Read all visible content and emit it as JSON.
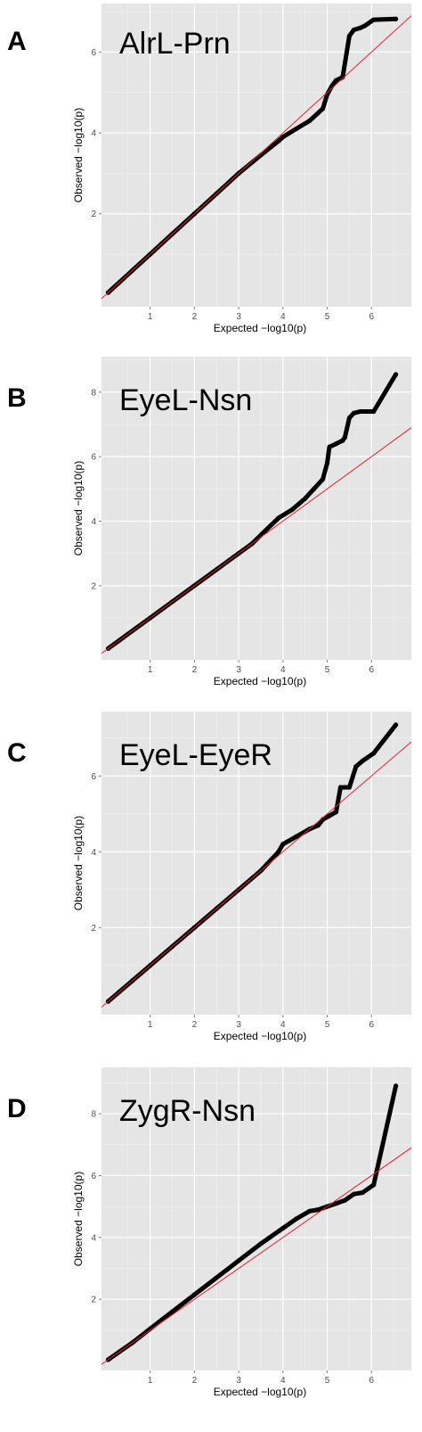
{
  "chart_data": [
    {
      "type": "scatter",
      "panel_label": "A",
      "title": "AlrL-Prn",
      "xlabel": "Expected  −log10(p)",
      "ylabel": "Observed  −log10(p)",
      "xlim": [
        -0.1,
        6.9
      ],
      "ylim": [
        -0.3,
        7.2
      ],
      "x_ticks": [
        1,
        2,
        3,
        4,
        5,
        6
      ],
      "y_ticks": [
        2,
        4,
        6
      ],
      "grid": true,
      "background": "#e5e5e5",
      "point_color": "#000000",
      "reference_line_color": "#e8202a",
      "reference_line": {
        "x": [
          -0.1,
          6.9
        ],
        "y": [
          -0.1,
          6.9
        ]
      },
      "points": {
        "x": [
          0.05,
          0.3,
          0.6,
          1.0,
          1.5,
          2.0,
          2.5,
          3.0,
          3.5,
          3.9,
          4.0,
          4.3,
          4.6,
          4.9,
          5.0,
          5.1,
          5.2,
          5.3,
          5.35,
          5.5,
          5.6,
          5.75,
          5.85,
          6.05,
          6.55
        ],
        "y": [
          0.05,
          0.3,
          0.6,
          1.0,
          1.5,
          2.0,
          2.5,
          3.0,
          3.45,
          3.8,
          3.9,
          4.1,
          4.3,
          4.6,
          4.95,
          5.15,
          5.3,
          5.35,
          5.38,
          6.4,
          6.55,
          6.6,
          6.65,
          6.8,
          6.82
        ]
      }
    },
    {
      "type": "scatter",
      "panel_label": "B",
      "title": "EyeL-Nsn",
      "xlabel": "Expected  −log10(p)",
      "ylabel": "Observed  −log10(p)",
      "xlim": [
        -0.1,
        6.9
      ],
      "ylim": [
        -0.3,
        9.1
      ],
      "x_ticks": [
        1,
        2,
        3,
        4,
        5,
        6
      ],
      "y_ticks": [
        2,
        4,
        6,
        8
      ],
      "grid": true,
      "background": "#e5e5e5",
      "point_color": "#000000",
      "reference_line_color": "#e8202a",
      "reference_line": {
        "x": [
          -0.1,
          6.9
        ],
        "y": [
          -0.1,
          6.9
        ]
      },
      "points": {
        "x": [
          0.05,
          0.3,
          0.6,
          1.0,
          1.5,
          2.0,
          2.5,
          3.0,
          3.3,
          3.6,
          3.9,
          4.2,
          4.5,
          4.7,
          4.9,
          5.0,
          5.05,
          5.2,
          5.35,
          5.4,
          5.5,
          5.6,
          5.75,
          6.05,
          6.55
        ],
        "y": [
          0.05,
          0.3,
          0.6,
          1.0,
          1.5,
          2.0,
          2.5,
          3.0,
          3.3,
          3.7,
          4.1,
          4.35,
          4.7,
          5.0,
          5.3,
          5.8,
          6.3,
          6.4,
          6.5,
          6.6,
          7.2,
          7.35,
          7.4,
          7.4,
          8.55
        ]
      }
    },
    {
      "type": "scatter",
      "panel_label": "C",
      "title": "EyeL-EyeR",
      "xlabel": "Expected  −log10(p)",
      "ylabel": "Observed  −log10(p)",
      "xlim": [
        -0.1,
        6.9
      ],
      "ylim": [
        -0.3,
        7.7
      ],
      "x_ticks": [
        1,
        2,
        3,
        4,
        5,
        6
      ],
      "y_ticks": [
        2,
        4,
        6
      ],
      "grid": true,
      "background": "#e5e5e5",
      "point_color": "#000000",
      "reference_line_color": "#e8202a",
      "reference_line": {
        "x": [
          -0.1,
          6.9
        ],
        "y": [
          -0.1,
          6.9
        ]
      },
      "points": {
        "x": [
          0.05,
          0.3,
          0.6,
          1.0,
          1.5,
          2.0,
          2.5,
          3.0,
          3.5,
          3.9,
          4.0,
          4.3,
          4.6,
          4.8,
          4.9,
          5.05,
          5.2,
          5.3,
          5.4,
          5.5,
          5.65,
          5.8,
          6.05,
          6.55
        ],
        "y": [
          0.05,
          0.3,
          0.6,
          1.0,
          1.5,
          2.0,
          2.5,
          3.0,
          3.5,
          4.0,
          4.2,
          4.4,
          4.6,
          4.7,
          4.85,
          4.95,
          5.05,
          5.7,
          5.7,
          5.7,
          6.25,
          6.4,
          6.6,
          7.35
        ]
      }
    },
    {
      "type": "scatter",
      "panel_label": "D",
      "title": "ZygR-Nsn",
      "xlabel": "Expected  −log10(p)",
      "ylabel": "Observed  −log10(p)",
      "xlim": [
        -0.1,
        6.9
      ],
      "ylim": [
        -0.3,
        9.5
      ],
      "x_ticks": [
        1,
        2,
        3,
        4,
        5,
        6
      ],
      "y_ticks": [
        2,
        4,
        6,
        8
      ],
      "grid": true,
      "background": "#e5e5e5",
      "point_color": "#000000",
      "reference_line_color": "#e8202a",
      "reference_line": {
        "x": [
          -0.1,
          6.9
        ],
        "y": [
          -0.1,
          6.9
        ]
      },
      "points": {
        "x": [
          0.05,
          0.3,
          0.6,
          1.0,
          1.5,
          2.0,
          2.5,
          3.0,
          3.5,
          4.0,
          4.3,
          4.6,
          4.8,
          4.9,
          5.0,
          5.2,
          5.4,
          5.5,
          5.6,
          5.8,
          6.05,
          6.55
        ],
        "y": [
          0.05,
          0.3,
          0.6,
          1.05,
          1.6,
          2.15,
          2.7,
          3.25,
          3.8,
          4.3,
          4.6,
          4.85,
          4.9,
          4.95,
          5.0,
          5.1,
          5.2,
          5.3,
          5.4,
          5.45,
          5.7,
          8.9
        ]
      }
    }
  ]
}
